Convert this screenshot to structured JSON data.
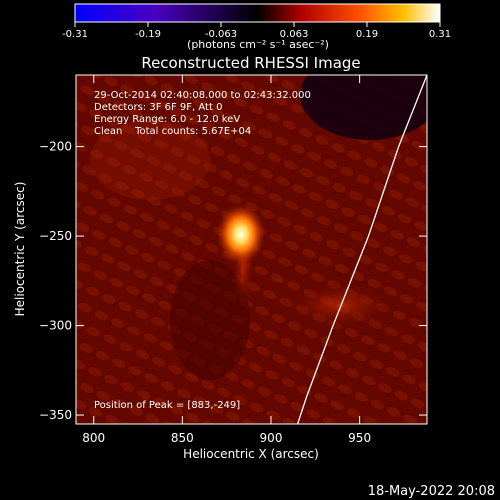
{
  "chart_data": {
    "type": "heatmap",
    "title": "Reconstructed RHESSI Image",
    "xlabel": "Heliocentric X (arcsec)",
    "ylabel": "Heliocentric Y (arcsec)",
    "xlim": [
      790,
      988
    ],
    "ylim": [
      -355,
      -160
    ],
    "xticks": [
      800,
      850,
      900,
      950
    ],
    "yticks": [
      -200,
      -250,
      -300,
      -350
    ],
    "colorbar": {
      "range": [
        -0.31,
        0.31
      ],
      "ticks": [
        "-0.31",
        "-0.19",
        "-0.063",
        "0.063",
        "0.19",
        "0.31"
      ],
      "unit": "(photons cm⁻² s⁻¹ asec⁻²)",
      "colormap": [
        "#0000ff",
        "#4a00c0",
        "#000000",
        "#b00000",
        "#ff5000",
        "#ffc000",
        "#ffffff"
      ]
    },
    "annotations": {
      "time": "29-Oct-2014 02:40:08.000 to 02:43:32.000",
      "detectors": "Detectors: 3F 6F 9F, Att 0",
      "energy": "Energy Range: 6.0 - 12.0 keV",
      "clean": "Clean    Total counts: 5.67E+04",
      "peak": "Position of Peak = [883,-249]"
    },
    "peak": {
      "x": 883,
      "y": -249
    },
    "limb_curve": [
      [
        988,
        -160
      ],
      [
        972,
        -200
      ],
      [
        955,
        -250
      ],
      [
        935,
        -300
      ],
      [
        920,
        -340
      ],
      [
        915,
        -355
      ]
    ],
    "footer_date": "18-May-2022 20:08"
  }
}
